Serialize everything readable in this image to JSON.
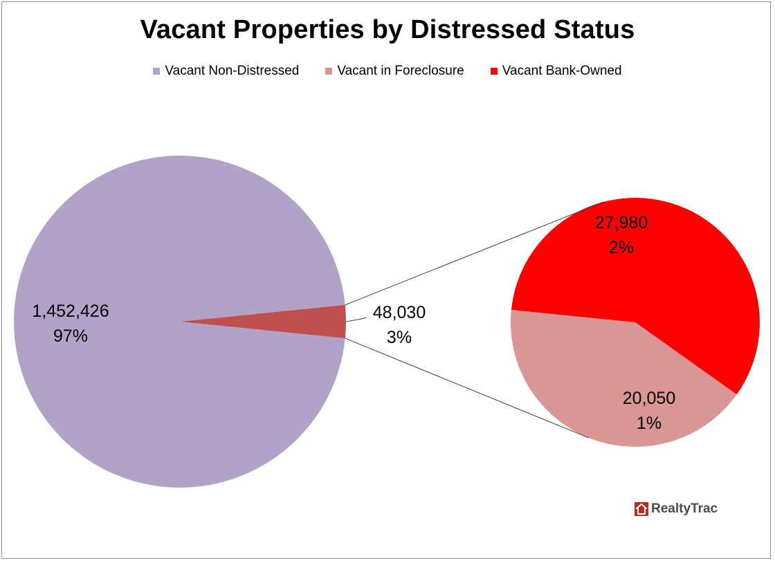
{
  "chart_data": {
    "type": "pie",
    "subtype": "pie-of-pie",
    "title": "Vacant Properties by Distressed Status",
    "legend_position": "top",
    "colors": {
      "non_distressed": "#b3a2c8",
      "foreclosure": "#d99694",
      "bank_owned": "#ff0000",
      "distressed_group": "#c0504d"
    },
    "main_pie": [
      {
        "key": "non_distressed",
        "name": "Vacant Non-Distressed",
        "value": 1452426,
        "value_label": "1,452,426",
        "percent_label": "97%"
      },
      {
        "key": "distressed_group",
        "name": "",
        "value": 48030,
        "value_label": "48,030",
        "percent_label": "3%"
      }
    ],
    "secondary_pie": [
      {
        "key": "bank_owned",
        "name": "Vacant Bank-Owned",
        "value": 27980,
        "value_label": "27,980",
        "percent_label": "2%"
      },
      {
        "key": "foreclosure",
        "name": "Vacant in Foreclosure",
        "value": 20050,
        "value_label": "20,050",
        "percent_label": "1%"
      }
    ],
    "legend": [
      {
        "key": "non_distressed",
        "label": "Vacant Non-Distressed"
      },
      {
        "key": "foreclosure",
        "label": "Vacant in Foreclosure"
      },
      {
        "key": "bank_owned",
        "label": "Vacant Bank-Owned"
      }
    ]
  },
  "branding": {
    "logo_text": "RealtyTrac",
    "logo_icon": "house-icon"
  }
}
